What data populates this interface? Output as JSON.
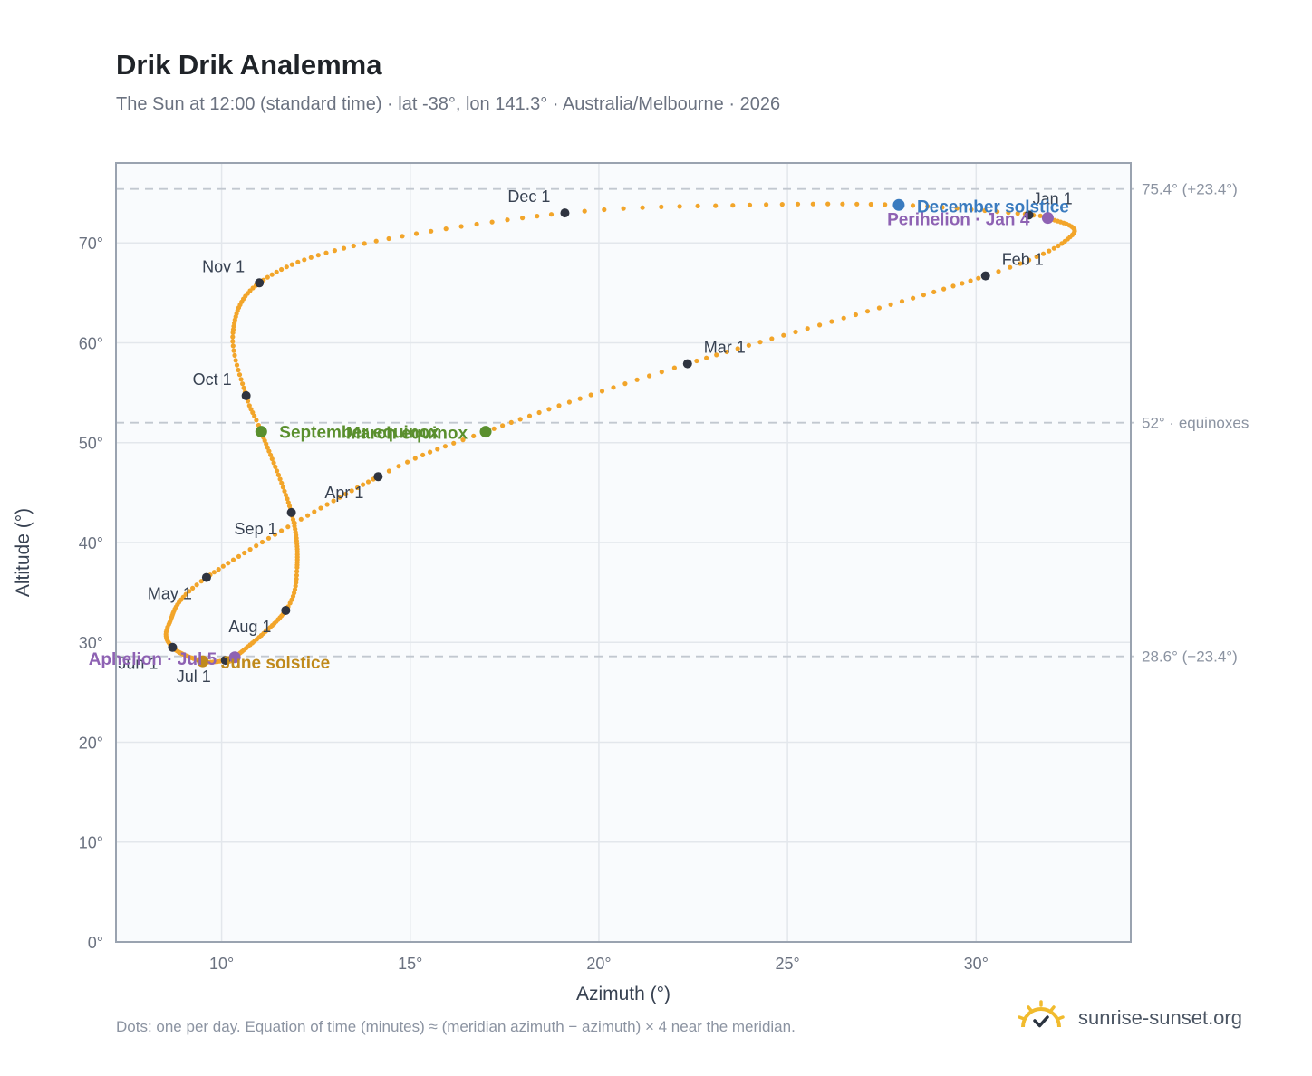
{
  "title": "Drik Drik Analemma",
  "subtitle": "The Sun at 12:00 (standard time) · lat -38°, lon 141.3° · Australia/Melbourne · 2026",
  "footnote": "Dots: one per day. Equation of time (minutes) ≈ (meridian azimuth − azimuth) × 4 near the meridian.",
  "brand": {
    "name": "sunrise-sunset.org",
    "icon": "sun-check-icon"
  },
  "colors": {
    "path": "#f2a52a",
    "month_marker": "#2f3440",
    "equinox": "#5a8f2e",
    "december_solstice": "#3a7bbf",
    "june_solstice": "#c08a1c",
    "apsis": "#8e62b3",
    "reference_line": "#c2c8d0",
    "plot_bg": "#f9fbfd",
    "grid": "#e3e7ec",
    "frame": "#9aa3b0"
  },
  "chart_data": {
    "type": "scatter",
    "title": "Drik Drik Analemma",
    "xlabel": "Azimuth (°)",
    "ylabel": "Altitude (°)",
    "xlim": [
      7.2,
      34.1
    ],
    "ylim": [
      0,
      78
    ],
    "x_ticks": [
      10,
      15,
      20,
      25,
      30
    ],
    "x_tick_labels": [
      "10°",
      "15°",
      "20°",
      "25°",
      "30°"
    ],
    "y_ticks": [
      0,
      10,
      20,
      30,
      40,
      50,
      60,
      70
    ],
    "y_tick_labels": [
      "0°",
      "10°",
      "20°",
      "30°",
      "40°",
      "50°",
      "60°",
      "70°"
    ],
    "grid": true,
    "reference_lines": [
      {
        "y": 75.4,
        "label": "75.4° (+23.4°)"
      },
      {
        "y": 52.0,
        "label": "52° · equinoxes"
      },
      {
        "y": 28.6,
        "label": "28.6° (−23.4°)"
      }
    ],
    "anchors": [
      {
        "day": 1,
        "x": 31.4,
        "y": 72.8
      },
      {
        "day": 4,
        "x": 31.9,
        "y": 72.5
      },
      {
        "day": 18,
        "x": 32.55,
        "y": 70.8
      },
      {
        "day": 32,
        "x": 30.25,
        "y": 66.7
      },
      {
        "day": 60,
        "x": 22.35,
        "y": 57.9
      },
      {
        "day": 79,
        "x": 17.0,
        "y": 51.1
      },
      {
        "day": 91,
        "x": 14.15,
        "y": 46.6
      },
      {
        "day": 121,
        "x": 9.6,
        "y": 36.5
      },
      {
        "day": 140,
        "x": 8.6,
        "y": 31.8
      },
      {
        "day": 152,
        "x": 8.7,
        "y": 29.5
      },
      {
        "day": 172,
        "x": 9.5,
        "y": 28.1
      },
      {
        "day": 182,
        "x": 10.1,
        "y": 28.2
      },
      {
        "day": 186,
        "x": 10.35,
        "y": 28.5
      },
      {
        "day": 213,
        "x": 11.7,
        "y": 33.2
      },
      {
        "day": 225,
        "x": 12.0,
        "y": 37.5
      },
      {
        "day": 244,
        "x": 11.85,
        "y": 43.0
      },
      {
        "day": 266,
        "x": 11.05,
        "y": 51.1
      },
      {
        "day": 274,
        "x": 10.65,
        "y": 54.7
      },
      {
        "day": 288,
        "x": 10.3,
        "y": 61.0
      },
      {
        "day": 305,
        "x": 11.0,
        "y": 66.0
      },
      {
        "day": 320,
        "x": 13.5,
        "y": 69.7
      },
      {
        "day": 335,
        "x": 19.1,
        "y": 73.0
      },
      {
        "day": 345,
        "x": 24.0,
        "y": 73.8
      },
      {
        "day": 355,
        "x": 27.95,
        "y": 73.8
      },
      {
        "day": 365,
        "x": 31.3,
        "y": 72.9
      }
    ],
    "month_markers": [
      {
        "label": "Jan 1",
        "x": 31.4,
        "y": 72.8,
        "anchor": "start",
        "dx": 4,
        "dy": -12
      },
      {
        "label": "Feb 1",
        "x": 30.25,
        "y": 66.7,
        "anchor": "start",
        "dx": 18,
        "dy": -12
      },
      {
        "label": "Mar 1",
        "x": 22.35,
        "y": 57.9,
        "anchor": "start",
        "dx": 18,
        "dy": -12
      },
      {
        "label": "Apr 1",
        "x": 14.15,
        "y": 46.6,
        "anchor": "end",
        "dx": -16,
        "dy": 24
      },
      {
        "label": "May 1",
        "x": 9.6,
        "y": 36.5,
        "anchor": "end",
        "dx": -16,
        "dy": 24
      },
      {
        "label": "Jun 1",
        "x": 8.7,
        "y": 29.5,
        "anchor": "end",
        "dx": -16,
        "dy": 24
      },
      {
        "label": "Jul 1",
        "x": 10.1,
        "y": 28.2,
        "anchor": "end",
        "dx": -16,
        "dy": 24
      },
      {
        "label": "Aug 1",
        "x": 11.7,
        "y": 33.2,
        "anchor": "end",
        "dx": -16,
        "dy": 24
      },
      {
        "label": "Sep 1",
        "x": 11.85,
        "y": 43.0,
        "anchor": "end",
        "dx": -16,
        "dy": 24
      },
      {
        "label": "Oct 1",
        "x": 10.65,
        "y": 54.7,
        "anchor": "end",
        "dx": -16,
        "dy": -12
      },
      {
        "label": "Nov 1",
        "x": 11.0,
        "y": 66.0,
        "anchor": "end",
        "dx": -16,
        "dy": -12
      },
      {
        "label": "Dec 1",
        "x": 19.1,
        "y": 73.0,
        "anchor": "end",
        "dx": -16,
        "dy": -12
      }
    ],
    "events": [
      {
        "label": "March equinox",
        "x": 17.0,
        "y": 51.1,
        "kind": "equinox",
        "anchor": "end",
        "dx": -20,
        "dy": 8
      },
      {
        "label": "September equinox",
        "x": 11.05,
        "y": 51.1,
        "kind": "equinox",
        "anchor": "start",
        "dx": 20,
        "dy": 7
      },
      {
        "label": "December solstice",
        "x": 27.95,
        "y": 73.8,
        "kind": "december_solstice",
        "anchor": "start",
        "dx": 20,
        "dy": 8
      },
      {
        "label": "June solstice",
        "x": 9.5,
        "y": 28.1,
        "kind": "june_solstice",
        "anchor": "start",
        "dx": 20,
        "dy": 8
      },
      {
        "label": "Perihelion · Jan 4",
        "x": 31.9,
        "y": 72.5,
        "kind": "apsis",
        "anchor": "end",
        "dx": -20,
        "dy": 8
      },
      {
        "label": "Aphelion · Jul 5",
        "x": 10.35,
        "y": 28.5,
        "kind": "apsis",
        "anchor": "end",
        "dx": -20,
        "dy": 8
      }
    ]
  }
}
